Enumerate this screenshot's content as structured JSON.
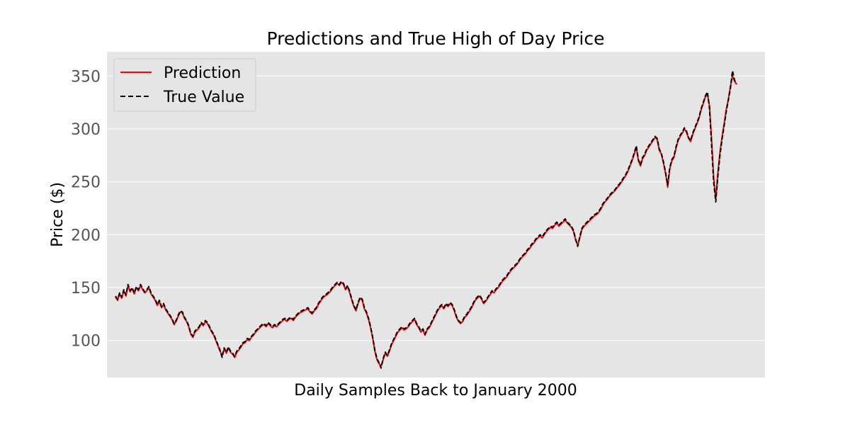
{
  "chart_data": {
    "type": "line",
    "title": "Predictions and True High of Day Price",
    "xlabel": "Daily Samples Back to January 2000",
    "ylabel": "Price ($)",
    "ylim": [
      65,
      373
    ],
    "yticks": [
      100,
      150,
      200,
      250,
      300,
      350
    ],
    "x_ticks_shown": false,
    "grid": "horizontal",
    "legend_position": "top-left",
    "background": "#e5e5e5",
    "series": [
      {
        "name": "Prediction",
        "color": "#ff0000",
        "style": "solid",
        "values": [
          141,
          138,
          144,
          140,
          147,
          142,
          152,
          146,
          149,
          144,
          150,
          147,
          152,
          148,
          145,
          147,
          150,
          144,
          141,
          138,
          133,
          137,
          131,
          134,
          129,
          126,
          123,
          120,
          115,
          118,
          123,
          127,
          126,
          121,
          118,
          113,
          106,
          103,
          108,
          110,
          112,
          116,
          114,
          118,
          116,
          112,
          108,
          105,
          100,
          95,
          90,
          86,
          92,
          88,
          93,
          89,
          87,
          84,
          89,
          91,
          94,
          97,
          98,
          101,
          100,
          103,
          105,
          108,
          110,
          112,
          114,
          115,
          113,
          116,
          114,
          112,
          114,
          113,
          115,
          117,
          119,
          120,
          118,
          120,
          121,
          119,
          122,
          124,
          126,
          127,
          128,
          129,
          130,
          127,
          125,
          128,
          130,
          134,
          137,
          140,
          142,
          143,
          145,
          147,
          150,
          152,
          154,
          152,
          155,
          153,
          148,
          151,
          145,
          138,
          132,
          128,
          135,
          140,
          138,
          130,
          126,
          120,
          112,
          102,
          90,
          82,
          78,
          76,
          82,
          88,
          85,
          90,
          96,
          100,
          104,
          108,
          110,
          112,
          110,
          111,
          113,
          116,
          118,
          120,
          115,
          112,
          108,
          110,
          105,
          110,
          112,
          116,
          120,
          124,
          128,
          131,
          133,
          130,
          134,
          132,
          135,
          133,
          128,
          122,
          118,
          116,
          118,
          122,
          124,
          127,
          130,
          134,
          138,
          140,
          142,
          139,
          135,
          137,
          140,
          143,
          146,
          145,
          148,
          150,
          153,
          156,
          158,
          160,
          163,
          166,
          168,
          170,
          172,
          175,
          178,
          180,
          182,
          185,
          187,
          190,
          192,
          195,
          197,
          199,
          197,
          200,
          203,
          205,
          207,
          206,
          209,
          211,
          208,
          210,
          212,
          214,
          211,
          209,
          207,
          203,
          195,
          190,
          197,
          205,
          208,
          210,
          212,
          214,
          216,
          218,
          219,
          221,
          224,
          228,
          231,
          233,
          236,
          238,
          240,
          242,
          245,
          247,
          250,
          253,
          256,
          260,
          265,
          270,
          276,
          283,
          270,
          265,
          272,
          275,
          280,
          283,
          286,
          289,
          292,
          290,
          280,
          276,
          268,
          258,
          245,
          262,
          270,
          273,
          282,
          289,
          293,
          296,
          300,
          297,
          291,
          288,
          295,
          300,
          305,
          310,
          318,
          324,
          330,
          333,
          322,
          290,
          254,
          234,
          258,
          278,
          292,
          305,
          318,
          328,
          340,
          350,
          345,
          342
        ]
      },
      {
        "name": "True Value",
        "color": "#000000",
        "style": "dashed",
        "values": [
          142,
          139,
          145,
          141,
          148,
          143,
          153,
          147,
          150,
          145,
          151,
          148,
          153,
          149,
          146,
          148,
          151,
          145,
          142,
          139,
          134,
          138,
          132,
          135,
          130,
          127,
          124,
          121,
          116,
          119,
          124,
          128,
          127,
          122,
          119,
          114,
          107,
          104,
          109,
          111,
          113,
          117,
          115,
          119,
          117,
          113,
          109,
          106,
          101,
          96,
          91,
          84,
          93,
          89,
          94,
          90,
          88,
          85,
          90,
          92,
          95,
          98,
          99,
          102,
          101,
          104,
          106,
          109,
          111,
          113,
          115,
          116,
          114,
          117,
          115,
          113,
          115,
          114,
          116,
          118,
          120,
          121,
          119,
          121,
          122,
          120,
          123,
          125,
          127,
          128,
          129,
          130,
          131,
          128,
          126,
          129,
          131,
          135,
          138,
          141,
          143,
          144,
          146,
          148,
          151,
          153,
          155,
          153,
          156,
          154,
          149,
          152,
          146,
          139,
          133,
          129,
          136,
          141,
          139,
          131,
          127,
          121,
          113,
          103,
          91,
          83,
          79,
          74,
          83,
          89,
          86,
          91,
          97,
          101,
          105,
          109,
          111,
          113,
          111,
          112,
          114,
          117,
          119,
          121,
          116,
          113,
          109,
          111,
          106,
          111,
          113,
          117,
          121,
          125,
          129,
          132,
          134,
          131,
          135,
          133,
          136,
          134,
          129,
          123,
          119,
          117,
          119,
          123,
          125,
          128,
          131,
          135,
          139,
          141,
          143,
          140,
          136,
          138,
          141,
          144,
          147,
          146,
          149,
          151,
          154,
          157,
          159,
          161,
          164,
          167,
          169,
          171,
          173,
          176,
          179,
          181,
          183,
          186,
          188,
          191,
          193,
          196,
          198,
          200,
          198,
          201,
          204,
          206,
          208,
          207,
          210,
          212,
          209,
          211,
          213,
          215,
          212,
          210,
          208,
          204,
          196,
          189,
          198,
          206,
          209,
          211,
          213,
          215,
          217,
          219,
          220,
          222,
          225,
          229,
          232,
          234,
          237,
          239,
          241,
          243,
          246,
          248,
          251,
          254,
          257,
          261,
          266,
          271,
          277,
          284,
          271,
          266,
          273,
          276,
          281,
          284,
          287,
          290,
          293,
          291,
          281,
          277,
          269,
          259,
          247,
          263,
          271,
          274,
          283,
          290,
          294,
          297,
          301,
          298,
          292,
          289,
          296,
          301,
          306,
          311,
          319,
          325,
          331,
          335,
          320,
          285,
          250,
          231,
          255,
          275,
          290,
          303,
          316,
          327,
          338,
          355,
          346,
          343
        ]
      }
    ]
  }
}
